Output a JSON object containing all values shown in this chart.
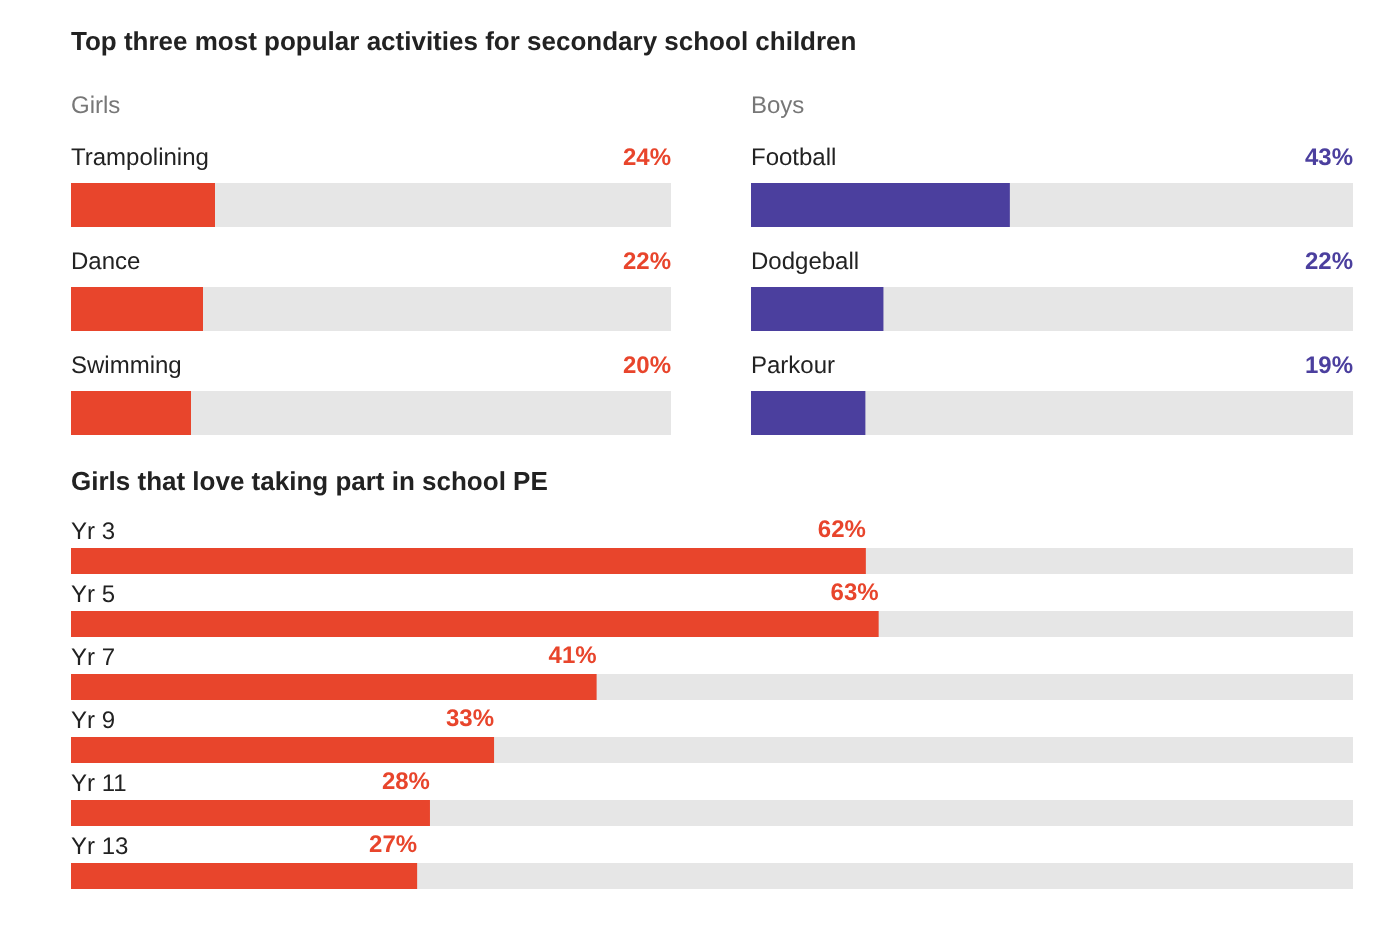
{
  "chart_data": [
    {
      "type": "bar",
      "orientation": "horizontal",
      "title": "Top three most popular activities for secondary school children",
      "subtitle": "Girls",
      "categories": [
        "Trampolining",
        "Dance",
        "Swimming"
      ],
      "values": [
        24,
        22,
        20
      ],
      "value_labels": [
        "24%",
        "22%",
        "20%"
      ],
      "color": "#e8452c",
      "xlim": [
        0,
        100
      ]
    },
    {
      "type": "bar",
      "orientation": "horizontal",
      "subtitle": "Boys",
      "categories": [
        "Football",
        "Dodgeball",
        "Parkour"
      ],
      "values": [
        43,
        22,
        19
      ],
      "value_labels": [
        "43%",
        "22%",
        "19%"
      ],
      "color": "#4b3f9e",
      "xlim": [
        0,
        100
      ]
    },
    {
      "type": "bar",
      "orientation": "horizontal",
      "title": "Girls that love taking part in school PE",
      "categories": [
        "Yr 3",
        "Yr 5",
        "Yr 7",
        "Yr 9",
        "Yr 11",
        "Yr 13"
      ],
      "values": [
        62,
        63,
        41,
        33,
        28,
        27
      ],
      "value_labels": [
        "62%",
        "63%",
        "41%",
        "33%",
        "28%",
        "27%"
      ],
      "color": "#e8452c",
      "xlim": [
        0,
        100
      ]
    }
  ]
}
